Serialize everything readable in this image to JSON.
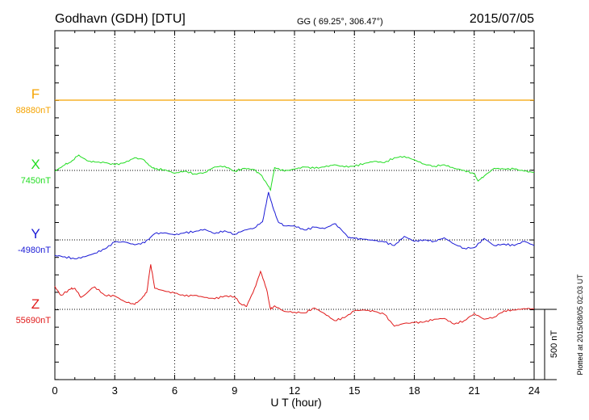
{
  "header": {
    "station": "Godhavn (GDH)  [DTU]",
    "coords": "GG ( 69.25°, 306.47°)",
    "date": "2015/07/05"
  },
  "chart_data": {
    "type": "line",
    "xlabel": "U T (hour)",
    "xlim": [
      0,
      24
    ],
    "x_ticks": [
      "0",
      "3",
      "6",
      "9",
      "12",
      "15",
      "18",
      "21",
      "24"
    ],
    "scale_bar": {
      "label": "500 nT",
      "value_nT": 500
    },
    "series": [
      {
        "name": "F",
        "color": "#f5a300",
        "baseline_label": "88880nT",
        "baseline_nT": 88880,
        "points": [
          [
            0,
            0
          ],
          [
            24,
            0
          ]
        ]
      },
      {
        "name": "X",
        "color": "#22dd22",
        "baseline_label": "7450nT",
        "baseline_nT": 7450,
        "points": [
          [
            0,
            -5
          ],
          [
            0.5,
            40
          ],
          [
            0.8,
            60
          ],
          [
            1.2,
            110
          ],
          [
            1.6,
            70
          ],
          [
            2.0,
            60
          ],
          [
            2.5,
            55
          ],
          [
            3.0,
            40
          ],
          [
            3.5,
            55
          ],
          [
            4.0,
            90
          ],
          [
            4.4,
            80
          ],
          [
            4.8,
            30
          ],
          [
            5.0,
            10
          ],
          [
            5.5,
            5
          ],
          [
            6.0,
            -20
          ],
          [
            6.5,
            -5
          ],
          [
            7.0,
            -25
          ],
          [
            7.5,
            -15
          ],
          [
            8.0,
            25
          ],
          [
            8.5,
            30
          ],
          [
            9.0,
            -5
          ],
          [
            9.5,
            15
          ],
          [
            10.0,
            5
          ],
          [
            10.3,
            -30
          ],
          [
            10.6,
            -90
          ],
          [
            10.8,
            -140
          ],
          [
            11.0,
            20
          ],
          [
            11.5,
            -5
          ],
          [
            12.0,
            10
          ],
          [
            12.5,
            25
          ],
          [
            13.0,
            15
          ],
          [
            13.5,
            25
          ],
          [
            14.0,
            40
          ],
          [
            14.5,
            25
          ],
          [
            15.0,
            30
          ],
          [
            15.5,
            50
          ],
          [
            16.0,
            65
          ],
          [
            16.5,
            55
          ],
          [
            17.0,
            90
          ],
          [
            17.5,
            100
          ],
          [
            18.0,
            75
          ],
          [
            18.5,
            45
          ],
          [
            19.0,
            30
          ],
          [
            19.5,
            40
          ],
          [
            20.0,
            15
          ],
          [
            20.5,
            0
          ],
          [
            21.0,
            -25
          ],
          [
            21.2,
            -75
          ],
          [
            21.5,
            -40
          ],
          [
            22.0,
            15
          ],
          [
            22.5,
            10
          ],
          [
            23.0,
            10
          ],
          [
            23.5,
            -5
          ],
          [
            24.0,
            -15
          ]
        ]
      },
      {
        "name": "Y",
        "color": "#1a1ad6",
        "baseline_label": "-4980nT",
        "baseline_nT": -4980,
        "points": [
          [
            0,
            -110
          ],
          [
            0.5,
            -120
          ],
          [
            1.0,
            -135
          ],
          [
            1.5,
            -120
          ],
          [
            2.0,
            -95
          ],
          [
            2.5,
            -65
          ],
          [
            3.0,
            -15
          ],
          [
            3.5,
            -15
          ],
          [
            4.0,
            -35
          ],
          [
            4.5,
            -20
          ],
          [
            5.0,
            45
          ],
          [
            5.5,
            50
          ],
          [
            6.0,
            35
          ],
          [
            6.5,
            50
          ],
          [
            7.0,
            60
          ],
          [
            7.5,
            75
          ],
          [
            8.0,
            45
          ],
          [
            8.5,
            65
          ],
          [
            9.0,
            40
          ],
          [
            9.5,
            70
          ],
          [
            10.0,
            85
          ],
          [
            10.4,
            130
          ],
          [
            10.7,
            340
          ],
          [
            10.9,
            240
          ],
          [
            11.2,
            125
          ],
          [
            11.5,
            100
          ],
          [
            12.0,
            100
          ],
          [
            12.5,
            70
          ],
          [
            13.0,
            90
          ],
          [
            13.5,
            80
          ],
          [
            14.0,
            115
          ],
          [
            14.3,
            80
          ],
          [
            14.7,
            15
          ],
          [
            15.0,
            10
          ],
          [
            15.5,
            5
          ],
          [
            16.0,
            -5
          ],
          [
            16.5,
            -15
          ],
          [
            17.0,
            -40
          ],
          [
            17.5,
            25
          ],
          [
            18.0,
            -10
          ],
          [
            18.5,
            0
          ],
          [
            19.0,
            -10
          ],
          [
            19.5,
            15
          ],
          [
            20.0,
            -30
          ],
          [
            20.5,
            -60
          ],
          [
            21.0,
            -55
          ],
          [
            21.5,
            10
          ],
          [
            22.0,
            -40
          ],
          [
            22.5,
            -30
          ],
          [
            23.0,
            -40
          ],
          [
            23.5,
            -10
          ],
          [
            24.0,
            -40
          ]
        ]
      },
      {
        "name": "Z",
        "color": "#e01a1a",
        "baseline_label": "55690nT",
        "baseline_nT": 55690,
        "points": [
          [
            0,
            165
          ],
          [
            0.3,
            100
          ],
          [
            0.8,
            145
          ],
          [
            1.0,
            150
          ],
          [
            1.3,
            85
          ],
          [
            2.0,
            160
          ],
          [
            2.5,
            100
          ],
          [
            3.0,
            95
          ],
          [
            3.5,
            55
          ],
          [
            4.0,
            35
          ],
          [
            4.3,
            70
          ],
          [
            4.6,
            120
          ],
          [
            4.8,
            320
          ],
          [
            5.0,
            150
          ],
          [
            5.5,
            130
          ],
          [
            6.0,
            115
          ],
          [
            6.5,
            95
          ],
          [
            7.0,
            100
          ],
          [
            7.5,
            85
          ],
          [
            8.0,
            75
          ],
          [
            8.5,
            95
          ],
          [
            9.0,
            90
          ],
          [
            9.3,
            40
          ],
          [
            9.6,
            20
          ],
          [
            10.0,
            150
          ],
          [
            10.3,
            270
          ],
          [
            10.6,
            145
          ],
          [
            10.8,
            0
          ],
          [
            11.0,
            25
          ],
          [
            11.5,
            -15
          ],
          [
            12.0,
            -20
          ],
          [
            12.5,
            -25
          ],
          [
            13.0,
            10
          ],
          [
            13.5,
            -30
          ],
          [
            14.0,
            -80
          ],
          [
            14.5,
            -60
          ],
          [
            15.0,
            -10
          ],
          [
            15.5,
            -5
          ],
          [
            16.0,
            -15
          ],
          [
            16.5,
            -35
          ],
          [
            17.0,
            -120
          ],
          [
            17.5,
            -100
          ],
          [
            18.0,
            -95
          ],
          [
            18.5,
            -90
          ],
          [
            19.0,
            -70
          ],
          [
            19.5,
            -65
          ],
          [
            20.0,
            -105
          ],
          [
            20.5,
            -80
          ],
          [
            21.0,
            -30
          ],
          [
            21.5,
            -70
          ],
          [
            22.0,
            -55
          ],
          [
            22.5,
            -10
          ],
          [
            23.0,
            -5
          ],
          [
            23.5,
            5
          ],
          [
            24.0,
            5
          ]
        ]
      }
    ],
    "side_note": "Plotted at 2015/08/05 02:03 UT"
  }
}
